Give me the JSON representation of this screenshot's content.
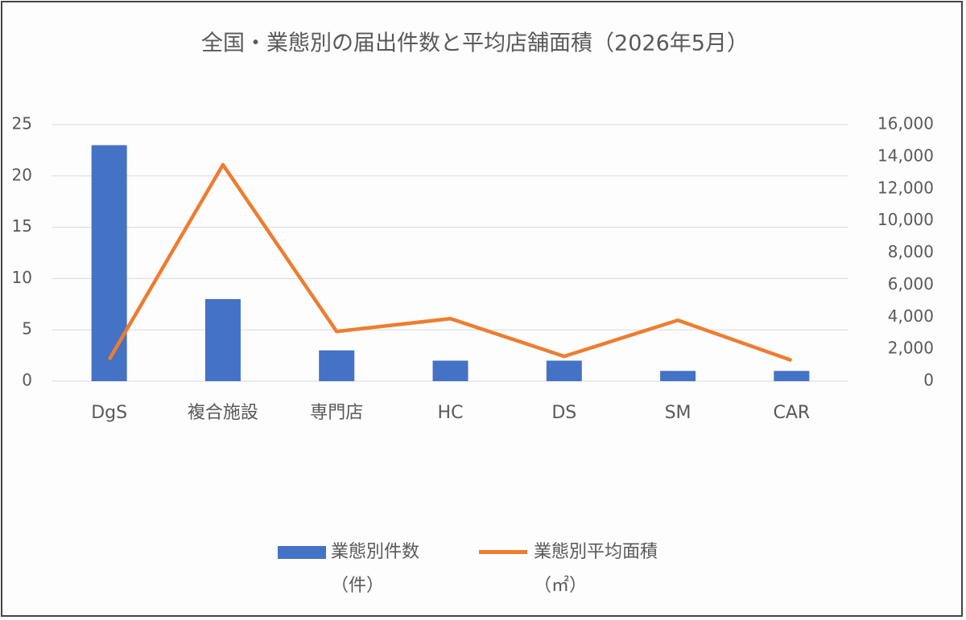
{
  "chart_data": {
    "type": "bar-line",
    "title": "全国・業態別の届出件数と平均店舗面積（2026年5月）",
    "categories": [
      "DgS",
      "複合施設",
      "専門店",
      "HC",
      "DS",
      "SM",
      "CAR"
    ],
    "series": [
      {
        "name": "業態別件数\n（件）",
        "type": "bar",
        "color": "#4472c4",
        "values": [
          23,
          8,
          3,
          2,
          2,
          1,
          1
        ]
      },
      {
        "name": "業態別平均面積\n（㎡）",
        "type": "line",
        "axis": "y2",
        "color": "#ed7d31",
        "values": [
          1350,
          13500,
          3100,
          3900,
          1550,
          3800,
          1300
        ]
      }
    ],
    "ylim": [
      0,
      25
    ],
    "yticks": [
      0,
      5,
      10,
      15,
      20,
      25
    ],
    "y2lim": [
      0,
      16000
    ],
    "y2ticks": [
      0,
      {
        "value": 2000,
        "label": "2,000"
      },
      {
        "value": 4000,
        "label": "4,000"
      },
      {
        "value": 6000,
        "label": "6,000"
      },
      {
        "value": 8000,
        "label": "8,000"
      },
      {
        "value": 10000,
        "label": "10,000"
      },
      {
        "value": 12000,
        "label": "12,000"
      },
      {
        "value": 14000,
        "label": "14,000"
      },
      {
        "value": 16000,
        "label": "16,000"
      }
    ],
    "grid": true,
    "legend": "bottom"
  }
}
